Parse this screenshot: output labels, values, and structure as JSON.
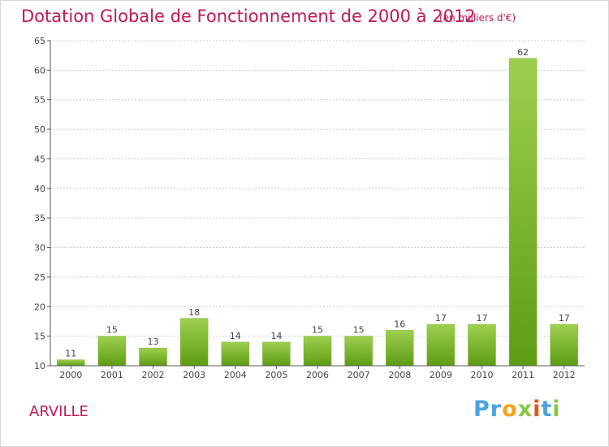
{
  "header": {
    "title": "Dotation Globale de Fonctionnement de 2000 à 2012",
    "subtitle": "(en milliers d'€)"
  },
  "footer": {
    "commune": "ARVILLE",
    "logo_letters": [
      "P",
      "r",
      "o",
      "x",
      "i",
      "t",
      "i"
    ]
  },
  "colors": {
    "title": "#c0185a",
    "bar_light": "#9ed04f",
    "bar_dark": "#5e9c14",
    "axis": "#555555",
    "grid": "#cccccc",
    "logo": [
      "#4aa3df",
      "#4aa3df",
      "#f7a21b",
      "#8cc63f",
      "#e8531f",
      "#4aa3df",
      "#8cc63f"
    ]
  },
  "chart_data": {
    "type": "bar",
    "title": "Dotation Globale de Fonctionnement de 2000 à 2012",
    "subtitle": "(en milliers d'€)",
    "categories": [
      "2000",
      "2001",
      "2002",
      "2003",
      "2004",
      "2005",
      "2006",
      "2007",
      "2008",
      "2009",
      "2010",
      "2011",
      "2012"
    ],
    "values": [
      11,
      15,
      13,
      18,
      14,
      14,
      15,
      15,
      16,
      17,
      17,
      62,
      17
    ],
    "labels": [
      "11",
      "15",
      "13",
      "18",
      "14",
      "14",
      "15",
      "15",
      "16",
      "17",
      "17",
      "62",
      "17"
    ],
    "ylim": [
      10,
      65
    ],
    "yticks": [
      10,
      15,
      20,
      25,
      30,
      35,
      40,
      45,
      50,
      55,
      60,
      65
    ],
    "grid": true,
    "xlabel": "",
    "ylabel": ""
  }
}
